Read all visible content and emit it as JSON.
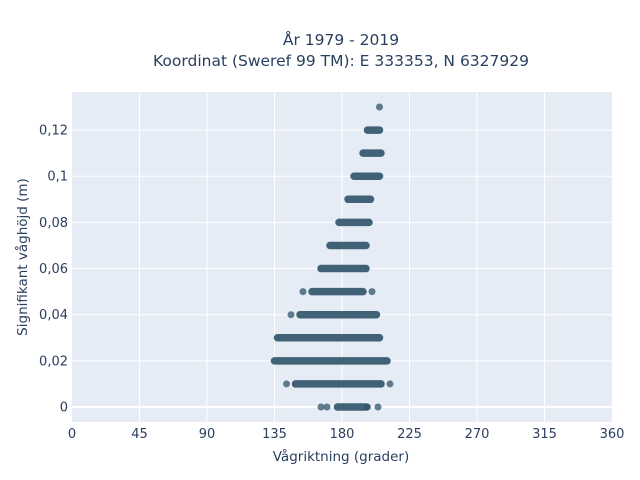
{
  "chart_data": {
    "type": "scatter",
    "title": "År 1979 - 2019",
    "subtitle": "Koordinat (Sweref 99 TM): E 333353, N 6327929",
    "xlabel": "Vågriktning (grader)",
    "ylabel": "Signifikant våghöjd (m)",
    "xlim": [
      0,
      360
    ],
    "ylim": [
      -0.0065,
      0.1365
    ],
    "x_ticks": [
      0,
      45,
      90,
      135,
      180,
      225,
      270,
      315,
      360
    ],
    "x_tick_labels": [
      "0",
      "45",
      "90",
      "135",
      "180",
      "225",
      "270",
      "315",
      "360"
    ],
    "y_ticks": [
      0,
      0.02,
      0.04,
      0.06,
      0.08,
      0.1,
      0.12
    ],
    "y_tick_labels": [
      "0",
      "0,02",
      "0,04",
      "0,06",
      "0,08",
      "0,1",
      "0,12"
    ],
    "grid": true,
    "legend": "none",
    "marker_color": "#2f5368",
    "background_color": "#e5ecf6",
    "bands": [
      {
        "y": 0.0,
        "x_min": 166,
        "x_max": 204,
        "isolated_x": [
          166,
          170,
          197,
          204
        ]
      },
      {
        "y": 0.01,
        "x_min": 143,
        "x_max": 212,
        "isolated_x": [
          143,
          212
        ]
      },
      {
        "y": 0.02,
        "x_min": 135,
        "x_max": 210
      },
      {
        "y": 0.03,
        "x_min": 137,
        "x_max": 205
      },
      {
        "y": 0.04,
        "x_min": 146,
        "x_max": 203,
        "isolated_x": [
          146
        ]
      },
      {
        "y": 0.05,
        "x_min": 154,
        "x_max": 200,
        "isolated_x": [
          154,
          200
        ]
      },
      {
        "y": 0.06,
        "x_min": 166,
        "x_max": 196
      },
      {
        "y": 0.07,
        "x_min": 172,
        "x_max": 196
      },
      {
        "y": 0.08,
        "x_min": 178,
        "x_max": 198
      },
      {
        "y": 0.09,
        "x_min": 184,
        "x_max": 199
      },
      {
        "y": 0.1,
        "x_min": 188,
        "x_max": 205
      },
      {
        "y": 0.11,
        "x_min": 194,
        "x_max": 206
      },
      {
        "y": 0.12,
        "x_min": 197,
        "x_max": 205
      },
      {
        "y": 0.13,
        "x_min": 205,
        "x_max": 205
      }
    ]
  }
}
